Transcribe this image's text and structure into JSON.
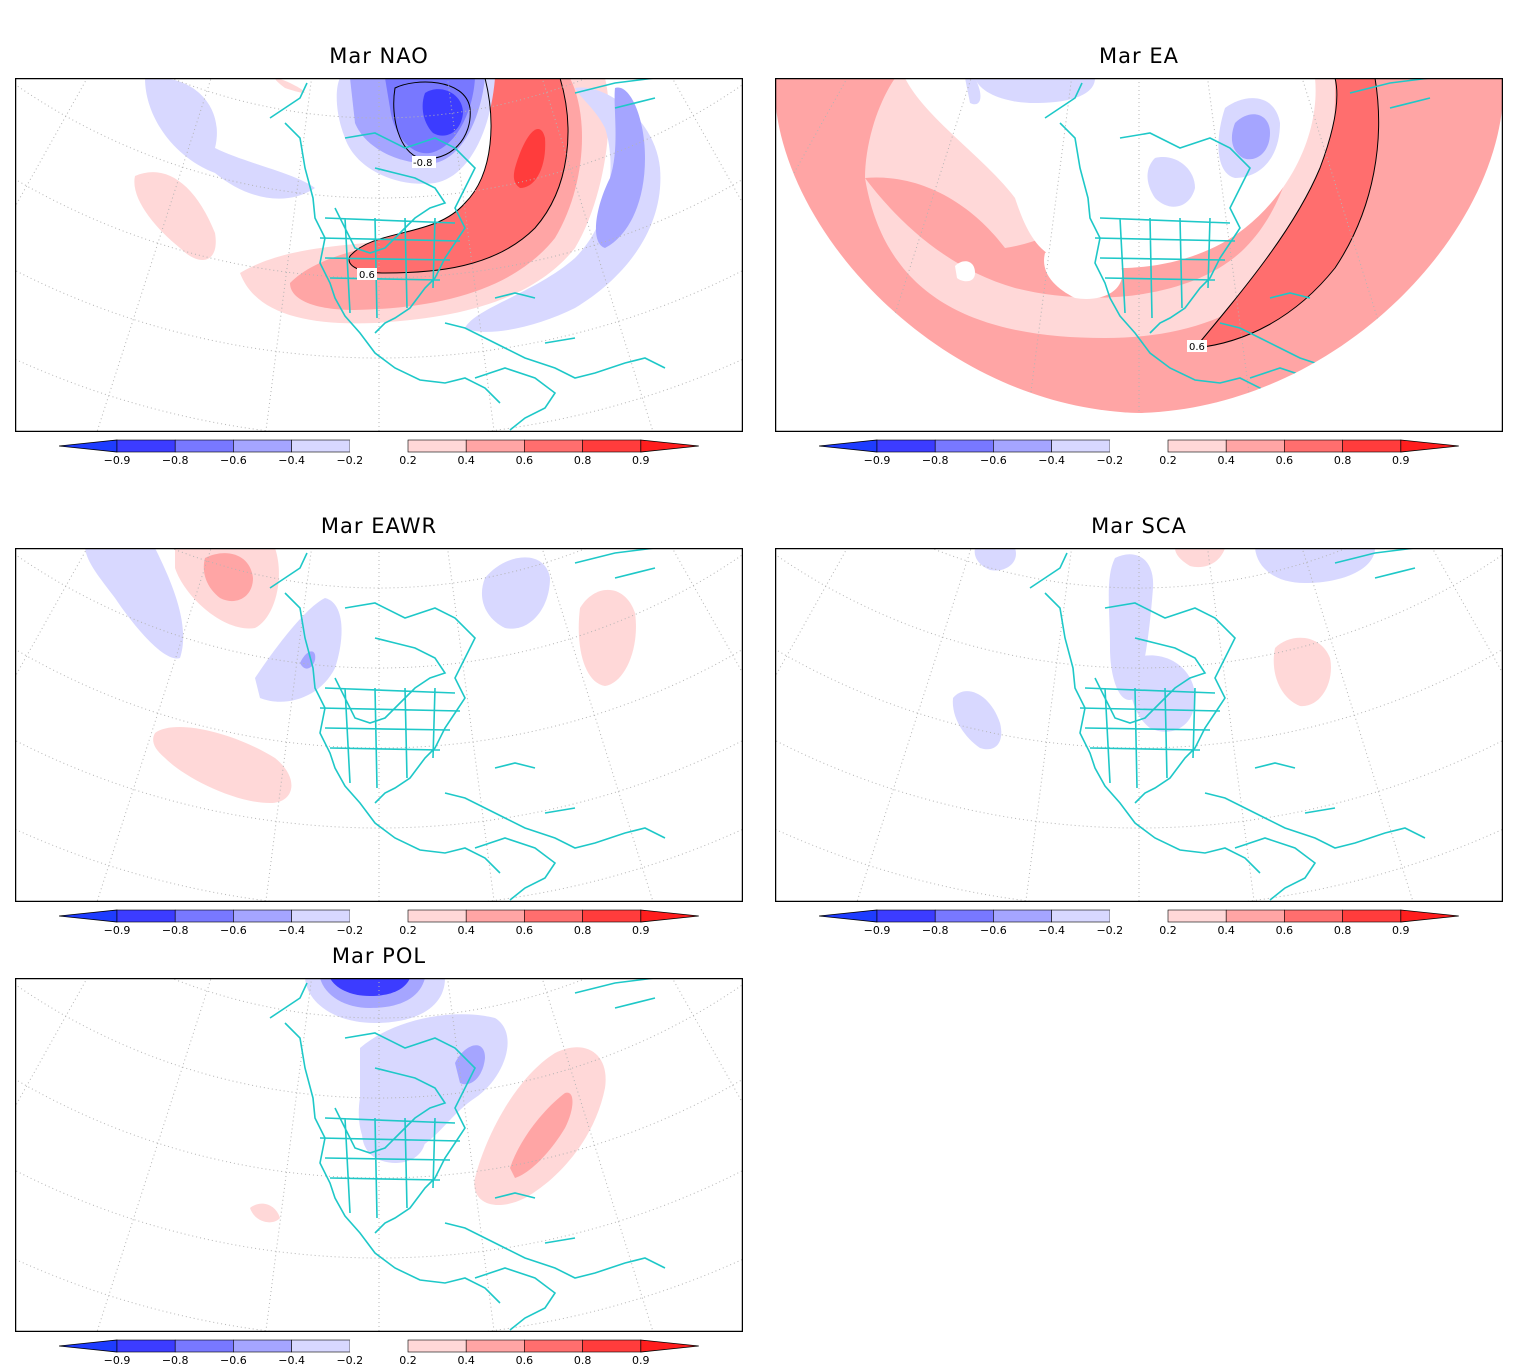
{
  "panels": [
    {
      "id": "nao",
      "title": "Mar NAO",
      "contour_labels": [
        "-0.8",
        "0.6"
      ]
    },
    {
      "id": "ea",
      "title": "Mar EA",
      "contour_labels": [
        "0.6"
      ]
    },
    {
      "id": "eawr",
      "title": "Mar EAWR",
      "contour_labels": []
    },
    {
      "id": "sca",
      "title": "Mar SCA",
      "contour_labels": []
    },
    {
      "id": "pol",
      "title": "Mar POL",
      "contour_labels": []
    }
  ],
  "colorbar": {
    "ticks": [
      "−0.9",
      "−0.8",
      "−0.6",
      "−0.4",
      "−0.2",
      "0.2",
      "0.4",
      "0.6",
      "0.8",
      "0.9"
    ],
    "colors": [
      "#1e3cff",
      "#3c3cff",
      "#7878ff",
      "#a5a5ff",
      "#d8d8ff",
      "#ffffff",
      "#ffd8d8",
      "#ffa5a5",
      "#ff6e6e",
      "#ff3c3c",
      "#ff1e1e"
    ]
  },
  "colors": {
    "coastline": "#1ec8c8",
    "grid": "#b4b4b4",
    "frame": "#000000"
  }
}
